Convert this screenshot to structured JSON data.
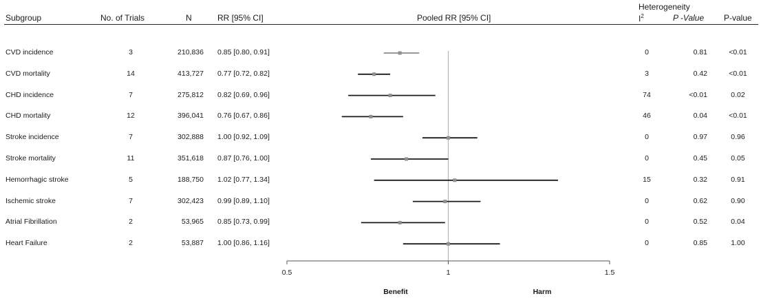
{
  "headers": {
    "subgroup": "Subgroup",
    "trials": "No. of Trials",
    "n": "N",
    "rr": "RR [95% CI]",
    "pooled": "Pooled RR [95% CI]",
    "heterogeneity": "Heterogeneity",
    "i2_base": "I",
    "i2_sup": "2",
    "pvalue": "P -Value",
    "pvalue2": "P-value"
  },
  "chart_data": {
    "type": "forest",
    "xlabel_left": "Benefit",
    "xlabel_right": "Harm",
    "xlim": [
      0.5,
      1.5
    ],
    "ticks": [
      "0.5",
      "1",
      "1.5"
    ],
    "reference_line": 1,
    "rows": [
      {
        "subgroup": "CVD incidence",
        "trials": "3",
        "n": "210,836",
        "rr_text": "0.85 [0.80, 0.91]",
        "rr": 0.85,
        "lo": 0.8,
        "hi": 0.91,
        "i2": "0",
        "p_het": "0.81",
        "p": "<0.01",
        "color": "#8a8a8a"
      },
      {
        "subgroup": "CVD mortality",
        "trials": "14",
        "n": "413,727",
        "rr_text": "0.77 [0.72, 0.82]",
        "rr": 0.77,
        "lo": 0.72,
        "hi": 0.82,
        "i2": "3",
        "p_het": "0.42",
        "p": "<0.01",
        "color": "#1a1a1a"
      },
      {
        "subgroup": "CHD incidence",
        "trials": "7",
        "n": "275,812",
        "rr_text": "0.82 [0.69, 0.96]",
        "rr": 0.82,
        "lo": 0.69,
        "hi": 0.96,
        "i2": "74",
        "p_het": "<0.01",
        "p": "0.02",
        "color": "#1a1a1a"
      },
      {
        "subgroup": "CHD mortality",
        "trials": "12",
        "n": "396,041",
        "rr_text": "0.76 [0.67, 0.86]",
        "rr": 0.76,
        "lo": 0.67,
        "hi": 0.86,
        "i2": "46",
        "p_het": "0.04",
        "p": "<0.01",
        "color": "#1a1a1a"
      },
      {
        "subgroup": "Stroke incidence",
        "trials": "7",
        "n": "302,888",
        "rr_text": "1.00 [0.92, 1.09]",
        "rr": 1.0,
        "lo": 0.92,
        "hi": 1.09,
        "i2": "0",
        "p_het": "0.97",
        "p": "0.96",
        "color": "#1a1a1a"
      },
      {
        "subgroup": "Stroke mortality",
        "trials": "11",
        "n": "351,618",
        "rr_text": "0.87 [0.76, 1.00]",
        "rr": 0.87,
        "lo": 0.76,
        "hi": 1.0,
        "i2": "0",
        "p_het": "0.45",
        "p": "0.05",
        "color": "#1a1a1a"
      },
      {
        "subgroup": "Hemorrhagic stroke",
        "trials": "5",
        "n": "188,750",
        "rr_text": "1.02 [0.77, 1.34]",
        "rr": 1.02,
        "lo": 0.77,
        "hi": 1.34,
        "i2": "15",
        "p_het": "0.32",
        "p": "0.91",
        "color": "#1a1a1a"
      },
      {
        "subgroup": "Ischemic stroke",
        "trials": "7",
        "n": "302,423",
        "rr_text": "0.99 [0.89, 1.10]",
        "rr": 0.99,
        "lo": 0.89,
        "hi": 1.1,
        "i2": "0",
        "p_het": "0.62",
        "p": "0.90",
        "color": "#1a1a1a"
      },
      {
        "subgroup": "Atrial Fibrillation",
        "trials": "2",
        "n": "53,965",
        "rr_text": "0.85 [0.73, 0.99]",
        "rr": 0.85,
        "lo": 0.73,
        "hi": 0.99,
        "i2": "0",
        "p_het": "0.52",
        "p": "0.04",
        "color": "#1a1a1a"
      },
      {
        "subgroup": "Heart Failure",
        "trials": "2",
        "n": "53,887",
        "rr_text": "1.00 [0.86, 1.16]",
        "rr": 1.0,
        "lo": 0.86,
        "hi": 1.16,
        "i2": "0",
        "p_het": "0.85",
        "p": "1.00",
        "color": "#1a1a1a"
      }
    ]
  }
}
